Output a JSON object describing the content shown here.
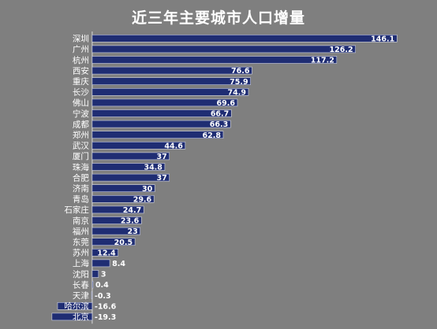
{
  "chart_data": {
    "type": "bar",
    "orientation": "horizontal",
    "title": "近三年主要城市人口增量",
    "categories": [
      "深圳",
      "广州",
      "杭州",
      "西安",
      "重庆",
      "长沙",
      "佛山",
      "宁波",
      "成都",
      "郑州",
      "武汉",
      "厦门",
      "珠海",
      "合肥",
      "济南",
      "青岛",
      "石家庄",
      "南京",
      "福州",
      "东莞",
      "苏州",
      "上海",
      "沈阳",
      "长春",
      "天津",
      "哈尔滨",
      "北京"
    ],
    "values": [
      146.1,
      126.2,
      117.2,
      76.6,
      75.9,
      74.9,
      69.6,
      66.7,
      66.3,
      62.8,
      44.6,
      37,
      34.8,
      37,
      30,
      29.6,
      24.7,
      23.6,
      23,
      20.5,
      12.4,
      8.4,
      3,
      0.4,
      -0.3,
      -16.6,
      -19.3
    ],
    "data_labels": [
      "146.1",
      "126.2",
      "117.2",
      "76.6",
      "75.9",
      "74.9",
      "69.6",
      "66.7",
      "66.3",
      "62.8",
      "44.6",
      "37",
      "34.8",
      "37",
      "30",
      "29.6",
      "24.7",
      "23.6",
      "23",
      "20.5",
      "12.4",
      "8.4",
      "3",
      "0.4",
      "-0.3",
      "-16.6",
      "-19.3"
    ],
    "xlim": [
      -20,
      160
    ],
    "grid": false,
    "legend": "none",
    "colors": {
      "background": "#7f7f7f",
      "bar_fill": "#1f2d73",
      "bar_stroke": "#cfd3e6",
      "axis": "#d9d9d9",
      "text": "#ffffff"
    }
  }
}
